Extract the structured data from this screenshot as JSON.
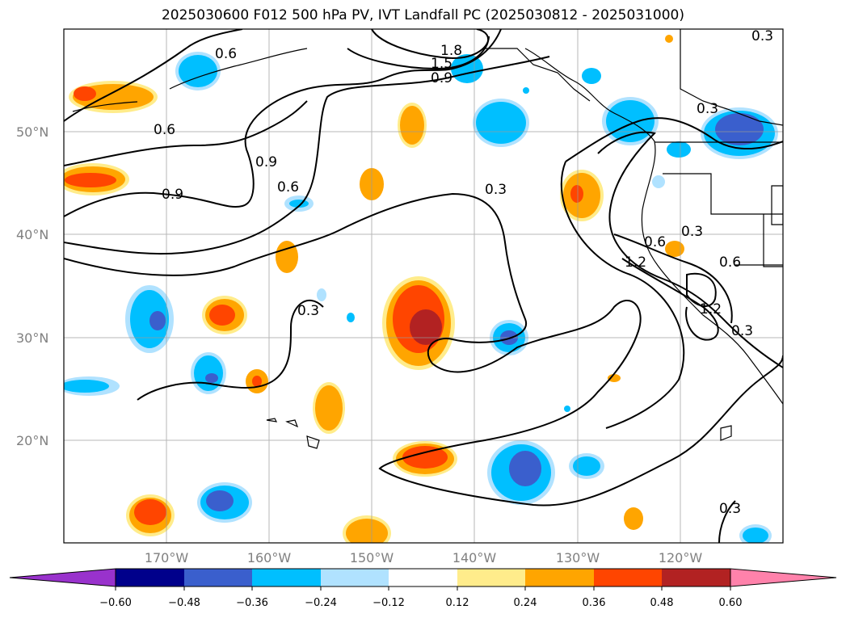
{
  "title": "2025030600 F012 500 hPa PV, IVT Landfall PC (2025030812 - 2025031000)",
  "map": {
    "lat_labels": [
      "50°N",
      "40°N",
      "30°N",
      "20°N"
    ],
    "lon_labels": [
      "170°W",
      "160°W",
      "150°W",
      "140°W",
      "130°W",
      "120°W"
    ],
    "gridlines": true
  },
  "colorbar": {
    "ticks": [
      "−0.60",
      "−0.48",
      "−0.36",
      "−0.24",
      "−0.12",
      "0.12",
      "0.24",
      "0.36",
      "0.48",
      "0.60"
    ],
    "colors": [
      "#9932cc",
      "#00008b",
      "#3a5fcd",
      "#00bfff",
      "#b0e2ff",
      "#ffffff",
      "#ffec8b",
      "#ffa500",
      "#ff4500",
      "#b22222",
      "#ff82ab"
    ],
    "extend": "both"
  },
  "contour_labels": [
    "0.6",
    "1.8",
    "1.5",
    "0.9",
    "0.3",
    "0.6",
    "0.9",
    "0.6",
    "0.9",
    "0.3",
    "0.3",
    "0.6",
    "1.2",
    "0.3",
    "0.6",
    "1.2",
    "0.3",
    "0.3",
    "0.3"
  ]
}
